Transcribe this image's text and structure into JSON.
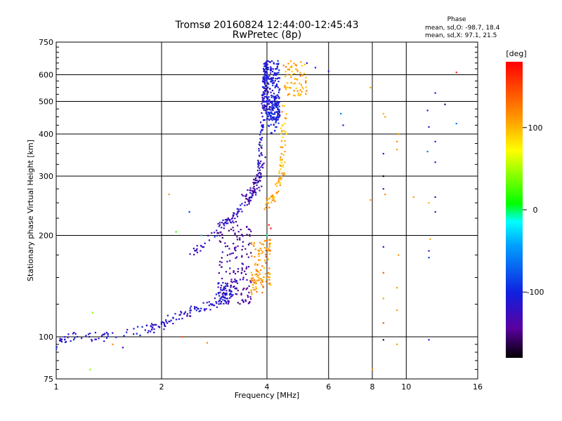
{
  "chart_data": {
    "type": "scatter",
    "title": "Tromsø 20160824 12:44:00-12:45:43",
    "subtitle": "RwPretec (8p)",
    "xlabel": "Frequency [MHz]",
    "ylabel": "Stationary phase Virtual Height [km]",
    "x_scale": "log2",
    "y_scale": "log",
    "xlim": [
      1,
      16
    ],
    "ylim": [
      75,
      750
    ],
    "x_ticks": [
      1,
      2,
      4,
      6,
      8,
      10,
      16
    ],
    "x_tick_labels": [
      "1",
      "2",
      "4",
      "6",
      "8",
      "10",
      "16"
    ],
    "y_ticks": [
      75,
      100,
      200,
      300,
      400,
      500,
      600,
      750
    ],
    "y_tick_labels": [
      "75",
      "100",
      "200",
      "300",
      "400",
      "500",
      "600",
      "750"
    ],
    "grid": true,
    "phase_box": {
      "title": "Phase",
      "line_o": "mean, sd,O: -98.7, 18.4",
      "line_x": "mean, sd,X:  97.1, 21.5"
    },
    "colorbar": {
      "label": "[deg]",
      "range": [
        -180,
        180
      ],
      "tick_values": [
        100,
        0,
        -100
      ],
      "tick_labels": [
        "100",
        "0",
        "-100"
      ]
    },
    "traces": [
      {
        "mode": "trend",
        "x": [
          1.0,
          1.1,
          1.4,
          1.8,
          2.0,
          2.2,
          2.5,
          2.8,
          3.1,
          3.3
        ],
        "y": [
          95,
          100,
          100,
          105,
          108,
          115,
          120,
          125,
          135,
          145
        ],
        "phase": -115,
        "jx": 0.03,
        "jy": 0.03,
        "n": 180
      },
      {
        "mode": "trend",
        "x": [
          2.4,
          2.8,
          3.0,
          3.2,
          3.4,
          3.6,
          3.8,
          3.9
        ],
        "y": [
          175,
          200,
          215,
          225,
          240,
          260,
          285,
          320
        ],
        "phase": -118,
        "jx": 0.025,
        "jy": 0.025,
        "n": 110
      },
      {
        "mode": "trend",
        "x": [
          3.4,
          3.6,
          3.8,
          3.9
        ],
        "y": [
          255,
          270,
          300,
          340
        ],
        "phase": -140,
        "jx": 0.025,
        "jy": 0.03,
        "n": 50
      },
      {
        "mode": "trend",
        "x": [
          3.8,
          3.85,
          3.9,
          3.95
        ],
        "y": [
          320,
          400,
          500,
          650
        ],
        "phase": -112,
        "jx": 0.01,
        "jy": 0.02,
        "n": 90
      },
      {
        "mode": "box",
        "x": [
          3.92,
          4.35
        ],
        "y": [
          440,
          660
        ],
        "phase": -108,
        "n": 230
      },
      {
        "mode": "box",
        "x": [
          4.02,
          4.35
        ],
        "y": [
          400,
          520
        ],
        "phase": -100,
        "n": 60
      },
      {
        "mode": "box",
        "x": [
          2.9,
          3.6
        ],
        "y": [
          125,
          220
        ],
        "phase": -140,
        "n": 150
      },
      {
        "mode": "box",
        "x": [
          2.9,
          3.1
        ],
        "y": [
          125,
          145
        ],
        "phase": -112,
        "n": 35
      },
      {
        "mode": "trend",
        "x": [
          4.0,
          4.2,
          4.4,
          4.45,
          4.5
        ],
        "y": [
          245,
          265,
          300,
          380,
          480
        ],
        "phase": 105,
        "jx": 0.02,
        "jy": 0.03,
        "n": 80
      },
      {
        "mode": "box",
        "x": [
          4.45,
          5.2
        ],
        "y": [
          520,
          660
        ],
        "phase": 108,
        "n": 70
      },
      {
        "mode": "box",
        "x": [
          3.6,
          4.1
        ],
        "y": [
          140,
          195
        ],
        "phase": 112,
        "n": 90
      },
      {
        "mode": "box",
        "x": [
          3.6,
          3.9
        ],
        "y": [
          132,
          150
        ],
        "phase": 118,
        "n": 25
      }
    ],
    "points": [
      {
        "x": 1.27,
        "y": 118,
        "phase": 40
      },
      {
        "x": 1.25,
        "y": 80,
        "phase": 40
      },
      {
        "x": 1.0,
        "y": 92,
        "phase": -100
      },
      {
        "x": 1.55,
        "y": 93,
        "phase": -130
      },
      {
        "x": 1.45,
        "y": 95,
        "phase": 120
      },
      {
        "x": 2.1,
        "y": 265,
        "phase": 110
      },
      {
        "x": 2.2,
        "y": 205,
        "phase": 20
      },
      {
        "x": 2.4,
        "y": 235,
        "phase": -90
      },
      {
        "x": 2.3,
        "y": 100,
        "phase": 140
      },
      {
        "x": 2.7,
        "y": 96,
        "phase": 120
      },
      {
        "x": 2.6,
        "y": 200,
        "phase": -30
      },
      {
        "x": 4.05,
        "y": 215,
        "phase": 165
      },
      {
        "x": 4.1,
        "y": 210,
        "phase": 175
      },
      {
        "x": 4.0,
        "y": 200,
        "phase": -10
      },
      {
        "x": 3.85,
        "y": 370,
        "phase": 30
      },
      {
        "x": 5.2,
        "y": 650,
        "phase": -110
      },
      {
        "x": 5.5,
        "y": 630,
        "phase": -110
      },
      {
        "x": 6.0,
        "y": 615,
        "phase": -110
      },
      {
        "x": 6.5,
        "y": 460,
        "phase": -60
      },
      {
        "x": 6.6,
        "y": 425,
        "phase": -110
      },
      {
        "x": 7.9,
        "y": 550,
        "phase": 110
      },
      {
        "x": 7.9,
        "y": 255,
        "phase": 110
      },
      {
        "x": 8.0,
        "y": 80,
        "phase": 110
      },
      {
        "x": 8.6,
        "y": 460,
        "phase": 100
      },
      {
        "x": 8.7,
        "y": 450,
        "phase": 110
      },
      {
        "x": 8.6,
        "y": 350,
        "phase": -110
      },
      {
        "x": 8.6,
        "y": 300,
        "phase": -180
      },
      {
        "x": 8.6,
        "y": 275,
        "phase": -110
      },
      {
        "x": 8.7,
        "y": 265,
        "phase": 120
      },
      {
        "x": 8.6,
        "y": 185,
        "phase": -110
      },
      {
        "x": 8.6,
        "y": 155,
        "phase": 140
      },
      {
        "x": 8.6,
        "y": 130,
        "phase": 105
      },
      {
        "x": 8.6,
        "y": 110,
        "phase": 140
      },
      {
        "x": 8.6,
        "y": 98,
        "phase": -170
      },
      {
        "x": 9.5,
        "y": 400,
        "phase": 110
      },
      {
        "x": 9.4,
        "y": 380,
        "phase": 120
      },
      {
        "x": 9.4,
        "y": 360,
        "phase": 110
      },
      {
        "x": 9.5,
        "y": 175,
        "phase": 110
      },
      {
        "x": 9.4,
        "y": 140,
        "phase": 110
      },
      {
        "x": 9.4,
        "y": 120,
        "phase": 110
      },
      {
        "x": 9.4,
        "y": 95,
        "phase": 110
      },
      {
        "x": 10.5,
        "y": 260,
        "phase": 110
      },
      {
        "x": 11.5,
        "y": 470,
        "phase": -100
      },
      {
        "x": 11.6,
        "y": 420,
        "phase": -110
      },
      {
        "x": 11.5,
        "y": 355,
        "phase": -60
      },
      {
        "x": 11.6,
        "y": 250,
        "phase": 100
      },
      {
        "x": 11.7,
        "y": 195,
        "phase": 105
      },
      {
        "x": 11.6,
        "y": 180,
        "phase": -110
      },
      {
        "x": 11.6,
        "y": 172,
        "phase": -90
      },
      {
        "x": 11.6,
        "y": 98,
        "phase": -110
      },
      {
        "x": 12.1,
        "y": 530,
        "phase": -100
      },
      {
        "x": 12.1,
        "y": 380,
        "phase": -100
      },
      {
        "x": 12.1,
        "y": 330,
        "phase": -110
      },
      {
        "x": 12.1,
        "y": 260,
        "phase": -140
      },
      {
        "x": 12.1,
        "y": 235,
        "phase": -120
      },
      {
        "x": 12.9,
        "y": 490,
        "phase": -160
      },
      {
        "x": 13.9,
        "y": 610,
        "phase": 165
      },
      {
        "x": 13.9,
        "y": 430,
        "phase": -60
      }
    ]
  }
}
